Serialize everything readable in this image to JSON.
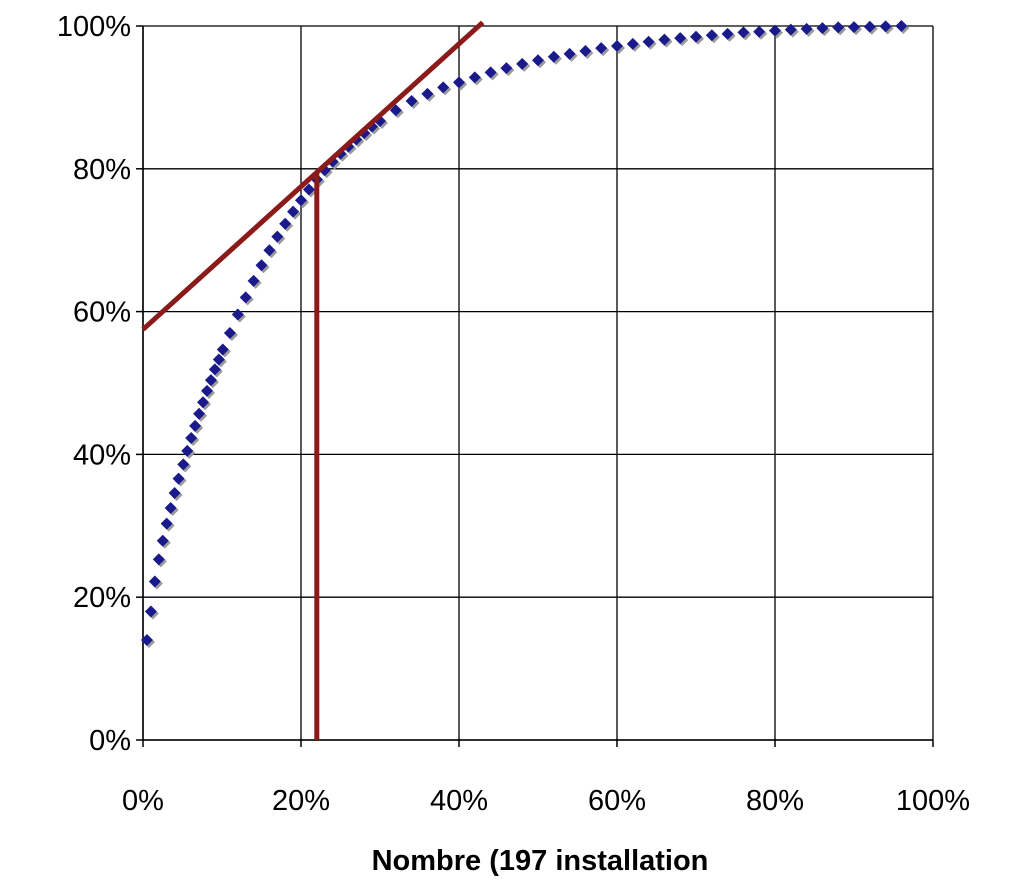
{
  "chart_data": {
    "type": "scatter",
    "title": "",
    "xlabel": "Nombre (197 installation",
    "ylabel": "",
    "xlim": [
      0,
      100
    ],
    "ylim": [
      0,
      100
    ],
    "x_ticks": [
      "0%",
      "20%",
      "40%",
      "60%",
      "80%",
      "100%"
    ],
    "y_ticks": [
      "0%",
      "20%",
      "40%",
      "60%",
      "80%",
      "100%"
    ],
    "grid": true,
    "legend": "none",
    "series": [
      {
        "kind": "markers",
        "marker": "diamond",
        "color": "#1a1a8c",
        "points": [
          [
            0.5,
            14
          ],
          [
            1.0,
            18
          ],
          [
            1.5,
            22.2
          ],
          [
            2.0,
            25.3
          ],
          [
            2.5,
            27.9
          ],
          [
            3.0,
            30.3
          ],
          [
            3.5,
            32.5
          ],
          [
            4.0,
            34.6
          ],
          [
            4.5,
            36.6
          ],
          [
            5.1,
            38.6
          ],
          [
            5.6,
            40.5
          ],
          [
            6.1,
            42.3
          ],
          [
            6.6,
            44.0
          ],
          [
            7.1,
            45.7
          ],
          [
            7.6,
            47.3
          ],
          [
            8.1,
            48.9
          ],
          [
            8.6,
            50.4
          ],
          [
            9.1,
            51.9
          ],
          [
            9.6,
            53.3
          ],
          [
            10.1,
            54.7
          ],
          [
            11,
            57
          ],
          [
            12,
            59.6
          ],
          [
            13,
            62
          ],
          [
            14,
            64.3
          ],
          [
            15,
            66.5
          ],
          [
            16,
            68.6
          ],
          [
            17,
            70.5
          ],
          [
            18,
            72.3
          ],
          [
            19,
            74
          ],
          [
            20,
            75.6
          ],
          [
            21,
            77.1
          ],
          [
            22,
            78.5
          ],
          [
            23,
            79.8
          ],
          [
            24,
            81
          ],
          [
            25,
            82.1
          ],
          [
            26,
            83.1
          ],
          [
            27,
            84.1
          ],
          [
            28,
            85
          ],
          [
            29,
            85.9
          ],
          [
            30,
            86.7
          ],
          [
            32,
            88.2
          ],
          [
            34,
            89.5
          ],
          [
            36,
            90.5
          ],
          [
            38,
            91.4
          ],
          [
            40,
            92.1
          ],
          [
            42,
            92.8
          ],
          [
            44,
            93.5
          ],
          [
            46,
            94.1
          ],
          [
            48,
            94.7
          ],
          [
            50,
            95.2
          ],
          [
            52,
            95.7
          ],
          [
            54,
            96.1
          ],
          [
            56,
            96.5
          ],
          [
            58,
            96.9
          ],
          [
            60,
            97.2
          ],
          [
            62,
            97.5
          ],
          [
            64,
            97.8
          ],
          [
            66,
            98.1
          ],
          [
            68,
            98.3
          ],
          [
            70,
            98.5
          ],
          [
            72,
            98.7
          ],
          [
            74,
            98.9
          ],
          [
            76,
            99.1
          ],
          [
            78,
            99.2
          ],
          [
            80,
            99.35
          ],
          [
            82,
            99.5
          ],
          [
            84,
            99.6
          ],
          [
            86,
            99.7
          ],
          [
            88,
            99.8
          ],
          [
            90,
            99.85
          ],
          [
            92,
            99.9
          ],
          [
            94,
            99.95
          ],
          [
            96,
            100
          ]
        ]
      },
      {
        "kind": "line",
        "color": "#8b1a1a",
        "points": [
          [
            0,
            57.5
          ],
          [
            43,
            100.5
          ]
        ]
      },
      {
        "kind": "line",
        "color": "#8b1a1a",
        "points": [
          [
            22,
            0
          ],
          [
            22,
            79.5
          ]
        ]
      }
    ]
  }
}
